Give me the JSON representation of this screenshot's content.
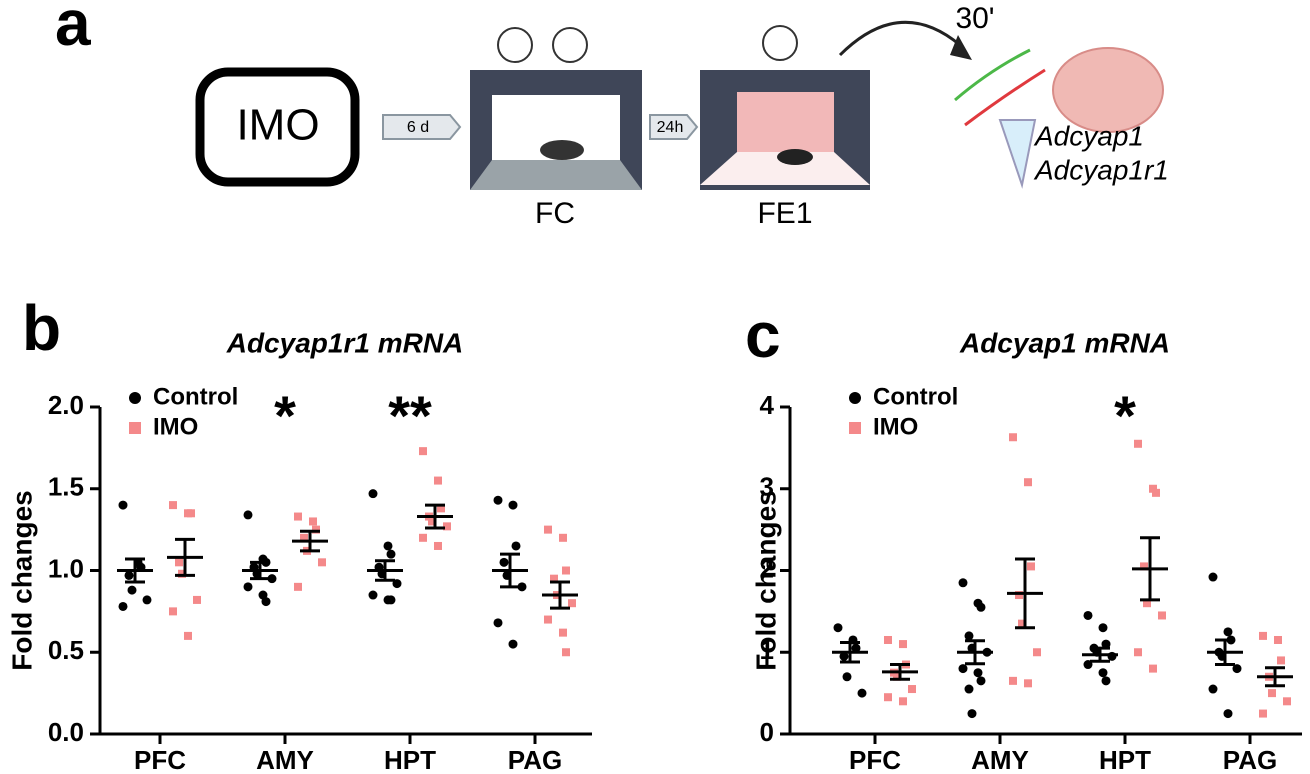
{
  "diagram": {
    "panel_label": "a",
    "start_label": "IMO",
    "intervals": [
      "6 d",
      "24h"
    ],
    "stages": [
      "FC",
      "FE1"
    ],
    "delay": "30'",
    "genes": [
      "Adcyap1",
      "Adcyap1r1"
    ]
  },
  "chart_data": [
    {
      "type": "dot",
      "panel": "b",
      "title": "Adcyap1r1 mRNA",
      "ylabel": "Fold changes",
      "categories": [
        "PFC",
        "AMY",
        "HPT",
        "PAG"
      ],
      "ylim": [
        0,
        2.0
      ],
      "yticks": [
        {
          "value": 0,
          "label": "0.0"
        },
        0.5,
        {
          "value": 1,
          "label": "1.0"
        },
        1.5,
        {
          "value": 2,
          "label": "2.0"
        }
      ],
      "series": [
        {
          "name": "Control",
          "color": "#000000",
          "marker": "circle",
          "values": [
            [
              1.4,
              1.05,
              1.02,
              0.97,
              0.88,
              0.82,
              0.78
            ],
            [
              1.34,
              1.07,
              1.05,
              1.02,
              0.98,
              0.95,
              0.9,
              0.85,
              0.81
            ],
            [
              1.47,
              1.15,
              1.1,
              1.02,
              0.98,
              0.92,
              0.85,
              0.82,
              0.82
            ],
            [
              1.43,
              1.4,
              1.15,
              1.05,
              0.97,
              0.9,
              0.68,
              0.55
            ]
          ],
          "mean": [
            1.0,
            1.0,
            1.0,
            1.0
          ],
          "sem": [
            0.07,
            0.05,
            0.06,
            0.1
          ]
        },
        {
          "name": "IMO",
          "color": "#f4898a",
          "marker": "square",
          "values": [
            [
              1.4,
              1.35,
              1.35,
              1.05,
              0.98,
              0.82,
              0.75,
              0.6
            ],
            [
              1.33,
              1.3,
              1.25,
              1.2,
              1.12,
              1.05,
              0.9
            ],
            [
              1.73,
              1.55,
              1.38,
              1.33,
              1.3,
              1.27,
              1.2,
              1.15
            ],
            [
              1.25,
              1.2,
              1.0,
              0.95,
              0.85,
              0.8,
              0.7,
              0.62,
              0.5
            ]
          ],
          "mean": [
            1.08,
            1.18,
            1.33,
            0.85
          ],
          "sem": [
            0.11,
            0.06,
            0.07,
            0.08
          ]
        }
      ],
      "annotations": [
        {
          "category": "AMY",
          "text": "*"
        },
        {
          "category": "HPT",
          "text": "**"
        }
      ]
    },
    {
      "type": "dot",
      "panel": "c",
      "title": "Adcyap1 mRNA",
      "ylabel": "Fold changes",
      "categories": [
        "PFC",
        "AMY",
        "HPT",
        "PAG"
      ],
      "ylim": [
        0,
        4
      ],
      "yticks": [
        0,
        1,
        2,
        3,
        4
      ],
      "series": [
        {
          "name": "Control",
          "color": "#000000",
          "marker": "circle",
          "values": [
            [
              1.3,
              1.15,
              1.05,
              0.95,
              0.7,
              0.5
            ],
            [
              1.85,
              1.6,
              1.55,
              1.2,
              1.05,
              1.0,
              0.8,
              0.75,
              0.65,
              0.55,
              0.25
            ],
            [
              1.45,
              1.3,
              1.1,
              1.05,
              1.0,
              0.95,
              0.85,
              0.75,
              0.65
            ],
            [
              1.92,
              1.25,
              1.15,
              1.0,
              0.95,
              0.8,
              0.55,
              0.25
            ]
          ],
          "mean": [
            1.0,
            1.0,
            0.97,
            1.0
          ],
          "sem": [
            0.12,
            0.14,
            0.08,
            0.15
          ]
        },
        {
          "name": "IMO",
          "color": "#f4898a",
          "marker": "square",
          "values": [
            [
              1.15,
              1.1,
              0.85,
              0.75,
              0.7,
              0.55,
              0.45,
              0.4
            ],
            [
              3.63,
              3.08,
              2.05,
              1.7,
              1.35,
              1.0,
              0.65,
              0.62
            ],
            [
              3.55,
              3.0,
              2.95,
              2.05,
              1.6,
              1.45,
              1.0,
              0.8
            ],
            [
              1.2,
              1.15,
              0.9,
              0.7,
              0.5,
              0.4,
              0.25
            ]
          ],
          "mean": [
            0.76,
            1.72,
            2.02,
            0.7
          ],
          "sem": [
            0.09,
            0.42,
            0.38,
            0.11
          ]
        }
      ],
      "annotations": [
        {
          "category": "HPT",
          "text": "*"
        }
      ]
    }
  ]
}
